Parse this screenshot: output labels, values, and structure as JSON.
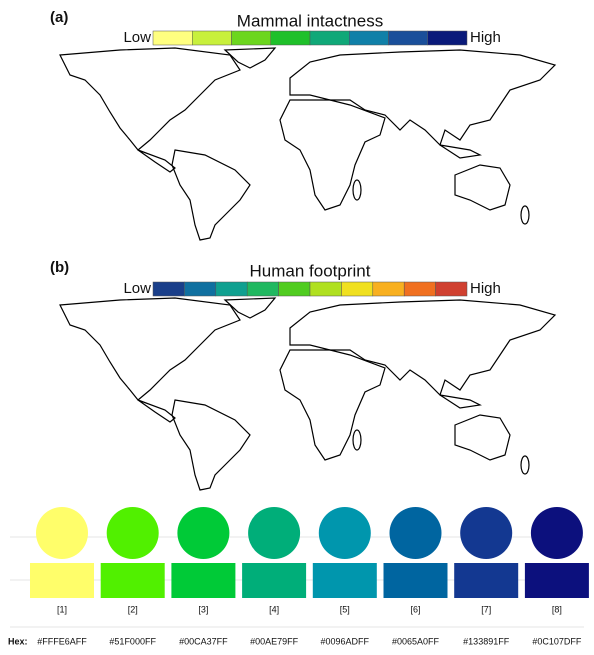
{
  "panels": [
    {
      "label": "(a)",
      "title": "Mammal intactness",
      "low": "Low",
      "high": "High",
      "scale_colors": [
        "#FFFF80",
        "#C8F03C",
        "#6CD61E",
        "#1FC02A",
        "#10A878",
        "#1080A8",
        "#1A4F9A",
        "#0A1A7A"
      ]
    },
    {
      "label": "(b)",
      "title": "Human footprint",
      "low": "Low",
      "high": "High",
      "scale_colors": [
        "#1A3F8A",
        "#1070A0",
        "#10A090",
        "#20B860",
        "#50CC20",
        "#B0E020",
        "#F0E020",
        "#F8B020",
        "#F07020",
        "#D04030"
      ]
    }
  ],
  "palette": {
    "hex_label": "Hex:",
    "swatches": [
      {
        "index": "[1]",
        "hex": "#FFFE6AFF"
      },
      {
        "index": "[2]",
        "hex": "#51F000FF"
      },
      {
        "index": "[3]",
        "hex": "#00CA37FF"
      },
      {
        "index": "[4]",
        "hex": "#00AE79FF"
      },
      {
        "index": "[5]",
        "hex": "#0096ADFF"
      },
      {
        "index": "[6]",
        "hex": "#0065A0FF"
      },
      {
        "index": "[7]",
        "hex": "#133891FF"
      },
      {
        "index": "[8]",
        "hex": "#0C107DFF"
      }
    ]
  }
}
